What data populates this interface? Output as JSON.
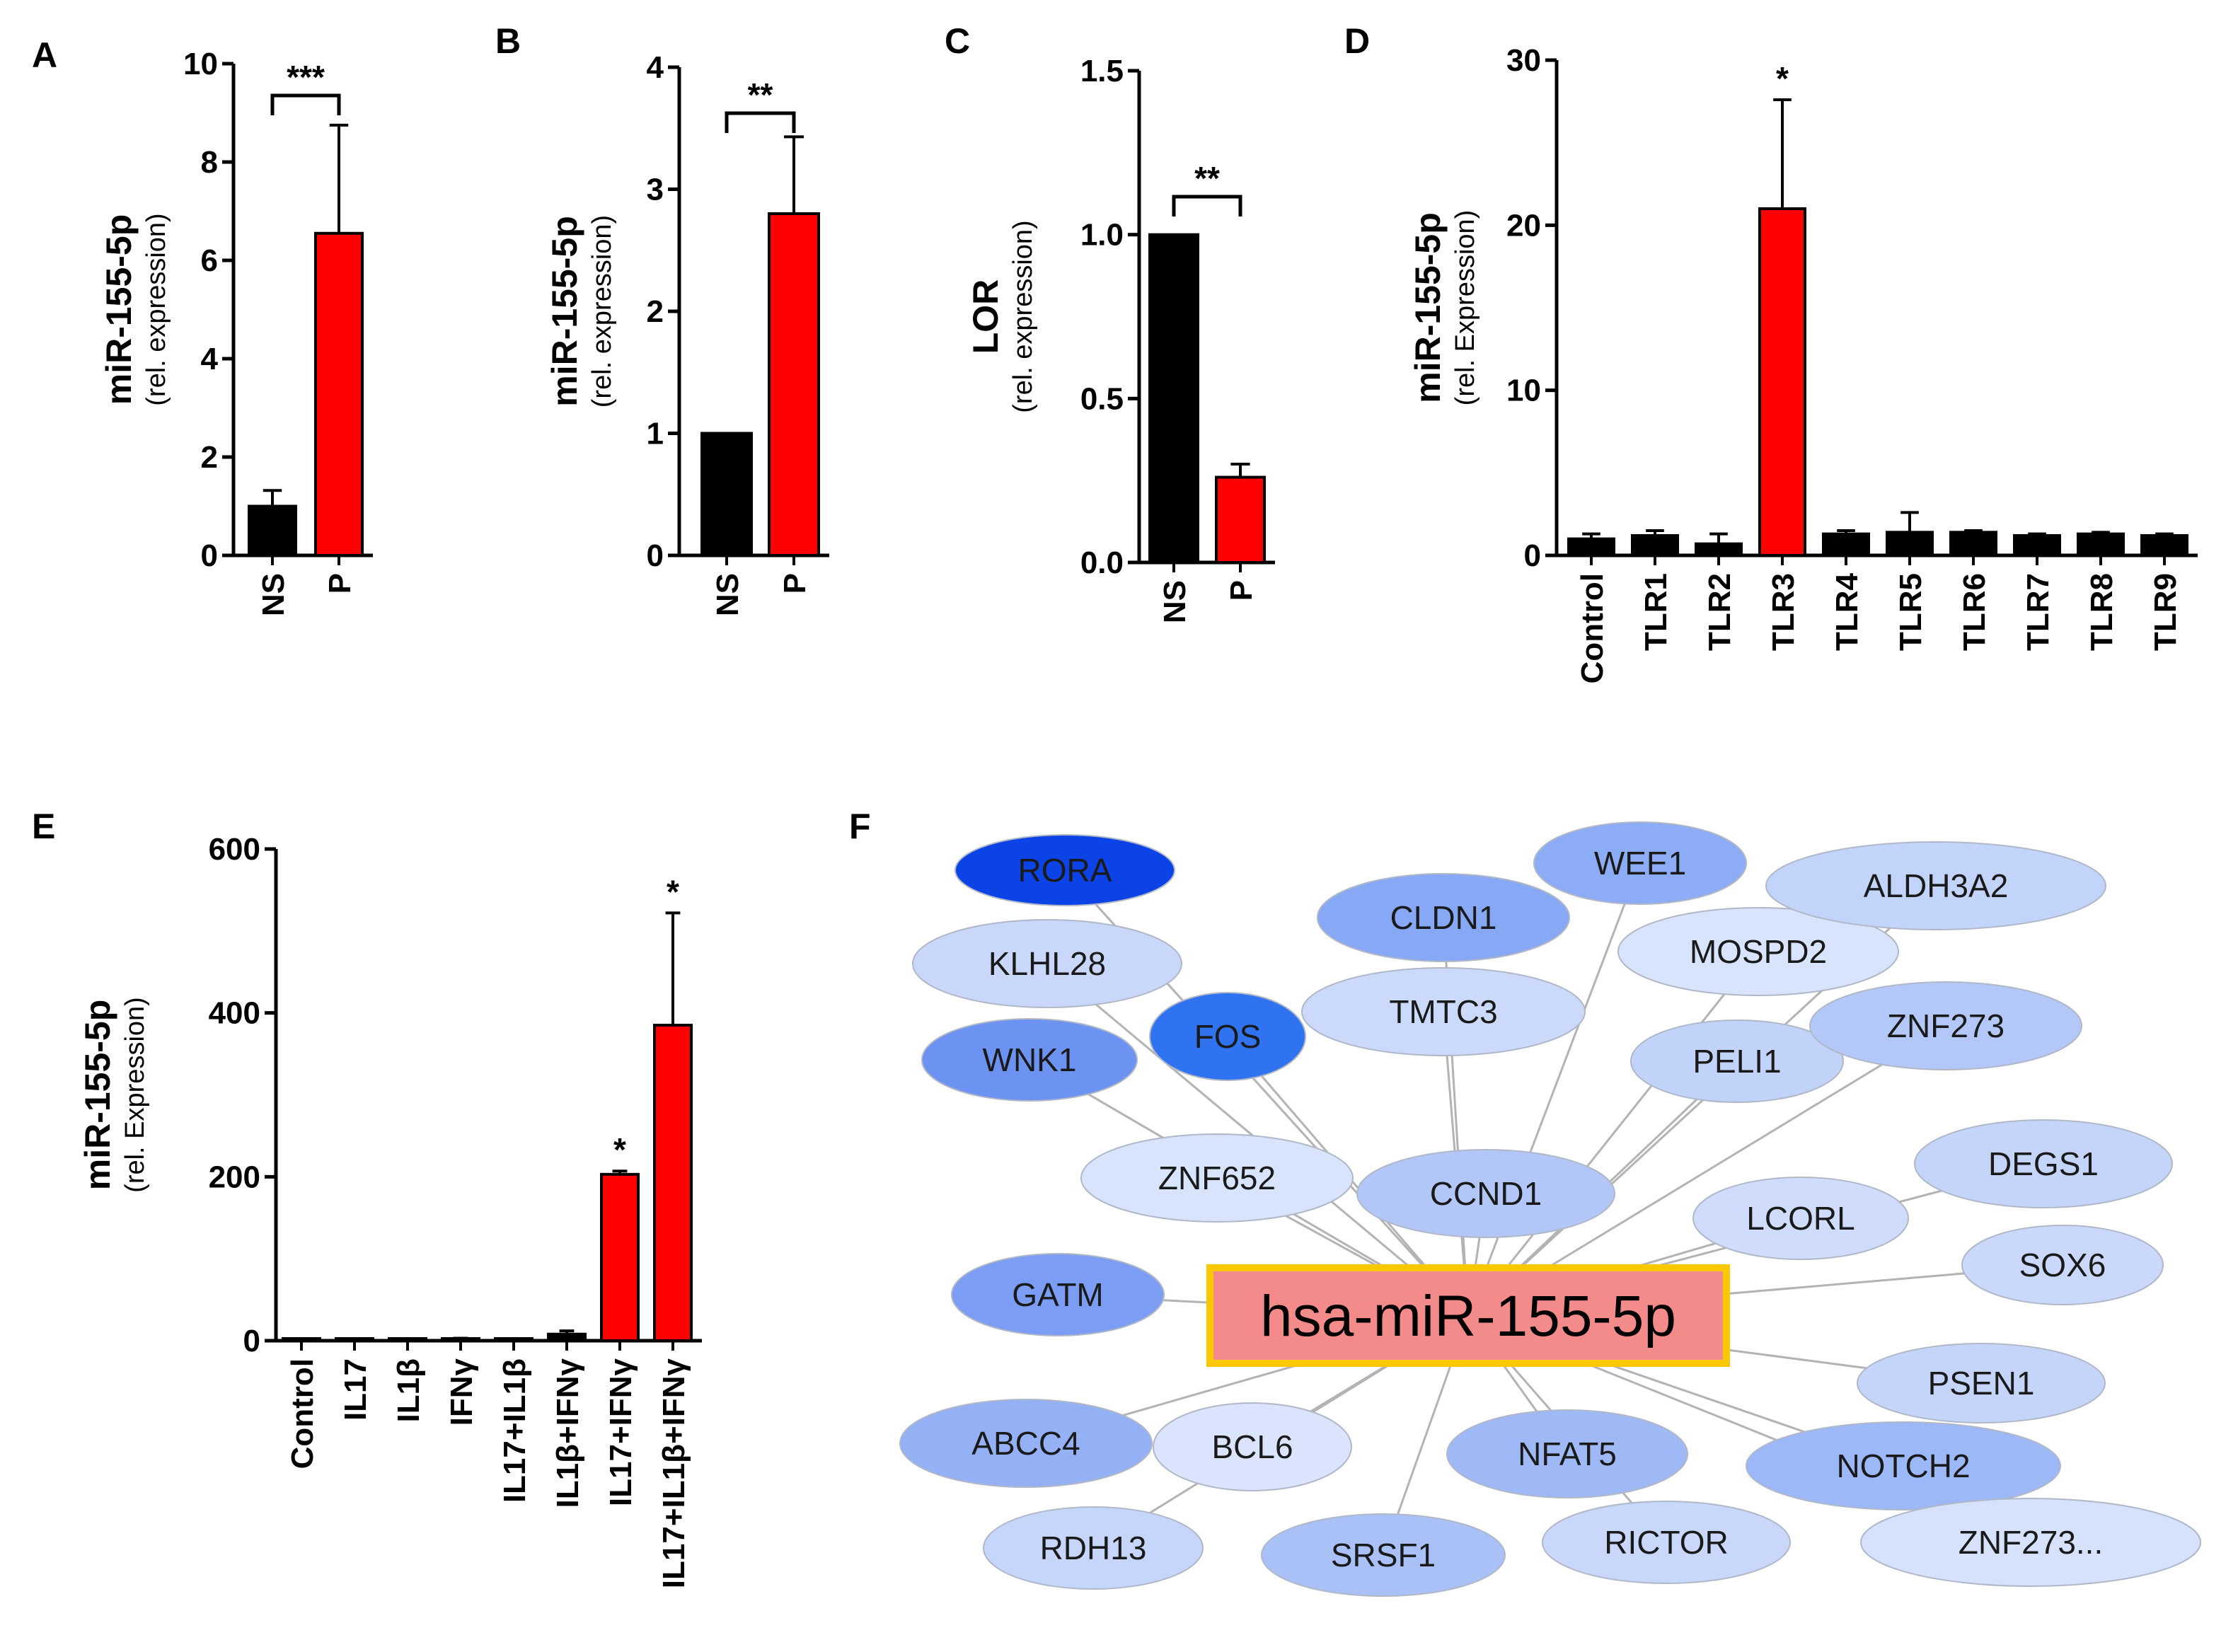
{
  "chart_data": [
    {
      "panel": "A",
      "type": "bar",
      "categories": [
        "NS",
        "P"
      ],
      "values": [
        1.0,
        6.55
      ],
      "errors": [
        0.32,
        2.2
      ],
      "colors": [
        "#000000",
        "#ff0000"
      ],
      "ylabel": "miR-155-5p",
      "ylabel_sub": "(rel. expression)",
      "ylim": [
        0,
        10
      ],
      "yticks": [
        "0",
        "2",
        "4",
        "6",
        "8",
        "10"
      ],
      "significance": [
        {
          "label": "***",
          "between": [
            "NS",
            "P"
          ]
        }
      ]
    },
    {
      "panel": "B",
      "type": "bar",
      "categories": [
        "NS",
        "P"
      ],
      "values": [
        1.0,
        2.8
      ],
      "errors": [
        0.0,
        0.63
      ],
      "colors": [
        "#000000",
        "#ff0000"
      ],
      "ylabel": "miR-155-5p",
      "ylabel_sub": "(rel. expression)",
      "ylim": [
        0,
        4
      ],
      "yticks": [
        "0",
        "1",
        "2",
        "3",
        "4"
      ],
      "significance": [
        {
          "label": "**",
          "between": [
            "NS",
            "P"
          ]
        }
      ]
    },
    {
      "panel": "C",
      "type": "bar",
      "categories": [
        "NS",
        "P"
      ],
      "values": [
        1.0,
        0.26
      ],
      "errors": [
        0.0,
        0.04
      ],
      "colors": [
        "#000000",
        "#ff0000"
      ],
      "ylabel": "LOR",
      "ylabel_sub": "(rel. expression)",
      "ylim": [
        0,
        1.5
      ],
      "yticks": [
        "0.0",
        "0.5",
        "1.0",
        "1.5"
      ],
      "significance": [
        {
          "label": "**",
          "between": [
            "NS",
            "P"
          ]
        }
      ]
    },
    {
      "panel": "D",
      "type": "bar",
      "categories": [
        "Control",
        "TLR1",
        "TLR2",
        "TLR3",
        "TLR4",
        "TLR5",
        "TLR6",
        "TLR7",
        "TLR8",
        "TLR9"
      ],
      "values": [
        1.0,
        1.2,
        0.7,
        21.0,
        1.3,
        1.4,
        1.4,
        1.2,
        1.3,
        1.2
      ],
      "errors": [
        0.3,
        0.3,
        0.6,
        6.6,
        0.2,
        1.2,
        0.1,
        0.1,
        0.1,
        0.1
      ],
      "colors": [
        "#000000",
        "#000000",
        "#000000",
        "#ff0000",
        "#000000",
        "#000000",
        "#000000",
        "#000000",
        "#000000",
        "#000000"
      ],
      "ylabel": "miR-155-5p",
      "ylabel_sub": "(rel. Expression)",
      "ylim": [
        0,
        30
      ],
      "yticks": [
        "0",
        "10",
        "20",
        "30"
      ],
      "significance": [
        {
          "label": "*",
          "on": "TLR3"
        }
      ]
    },
    {
      "panel": "E",
      "type": "bar",
      "categories": [
        "Control",
        "IL17",
        "IL1β",
        "IFNγ",
        "IL17+IL1β",
        "IL1β+IFNγ",
        "IL17+IFNγ",
        "IL17+IL1β+IFNγ"
      ],
      "values": [
        1,
        1,
        1,
        2,
        1,
        8,
        203,
        385
      ],
      "errors": [
        0,
        0,
        0,
        1,
        0,
        4,
        4,
        137
      ],
      "colors": [
        "#000000",
        "#000000",
        "#000000",
        "#000000",
        "#000000",
        "#000000",
        "#ff0000",
        "#ff0000"
      ],
      "ylabel": "miR-155-5p",
      "ylabel_sub": "(rel. Expression)",
      "ylim": [
        0,
        600
      ],
      "yticks": [
        "0",
        "200",
        "400",
        "600"
      ],
      "significance": [
        {
          "label": "*",
          "on": "IL17+IFNγ"
        },
        {
          "label": "*",
          "on": "IL17+IL1β+IFNγ"
        }
      ]
    }
  ],
  "network": {
    "panel": "F",
    "center": "hsa-miR-155-5p",
    "nodes": [
      {
        "label": "RORA",
        "color": "#0b43e6"
      },
      {
        "label": "KLHL28",
        "color": "#c9d8fa"
      },
      {
        "label": "WNK1",
        "color": "#6d93f2"
      },
      {
        "label": "FOS",
        "color": "#2f73f0"
      },
      {
        "label": "CLDN1",
        "color": "#86a8f5"
      },
      {
        "label": "TMTC3",
        "color": "#cbd9fb"
      },
      {
        "label": "WEE1",
        "color": "#8cadf6"
      },
      {
        "label": "MOSPD2",
        "color": "#d8e3fc"
      },
      {
        "label": "ALDH3A2",
        "color": "#c3d4fa"
      },
      {
        "label": "PELI1",
        "color": "#c2d3fa"
      },
      {
        "label": "ZNF273",
        "color": "#b3c8f8"
      },
      {
        "label": "ZNF652",
        "color": "#d8e3fc"
      },
      {
        "label": "CCND1",
        "color": "#b2c7f8"
      },
      {
        "label": "LCORL",
        "color": "#cfdcfb"
      },
      {
        "label": "DEGS1",
        "color": "#c5d5fa"
      },
      {
        "label": "GATM",
        "color": "#7b9ef4"
      },
      {
        "label": "SOX6",
        "color": "#c9d8fb"
      },
      {
        "label": "PSEN1",
        "color": "#c5d5fa"
      },
      {
        "label": "ABCC4",
        "color": "#94b1f6"
      },
      {
        "label": "BCL6",
        "color": "#dae4fc"
      },
      {
        "label": "NFAT5",
        "color": "#9fb9f7"
      },
      {
        "label": "NOTCH2",
        "color": "#9db8f7"
      },
      {
        "label": "RDH13",
        "color": "#c6d6fa"
      },
      {
        "label": "SRSF1",
        "color": "#a9c1f7"
      },
      {
        "label": "RICTOR",
        "color": "#c8d7fa"
      },
      {
        "label": "ZNF273...",
        "color": "#d6e1fc"
      }
    ],
    "center_fill": "#f48b8b",
    "center_border": "#f9c800",
    "edge_color": "#b3b3b3"
  }
}
